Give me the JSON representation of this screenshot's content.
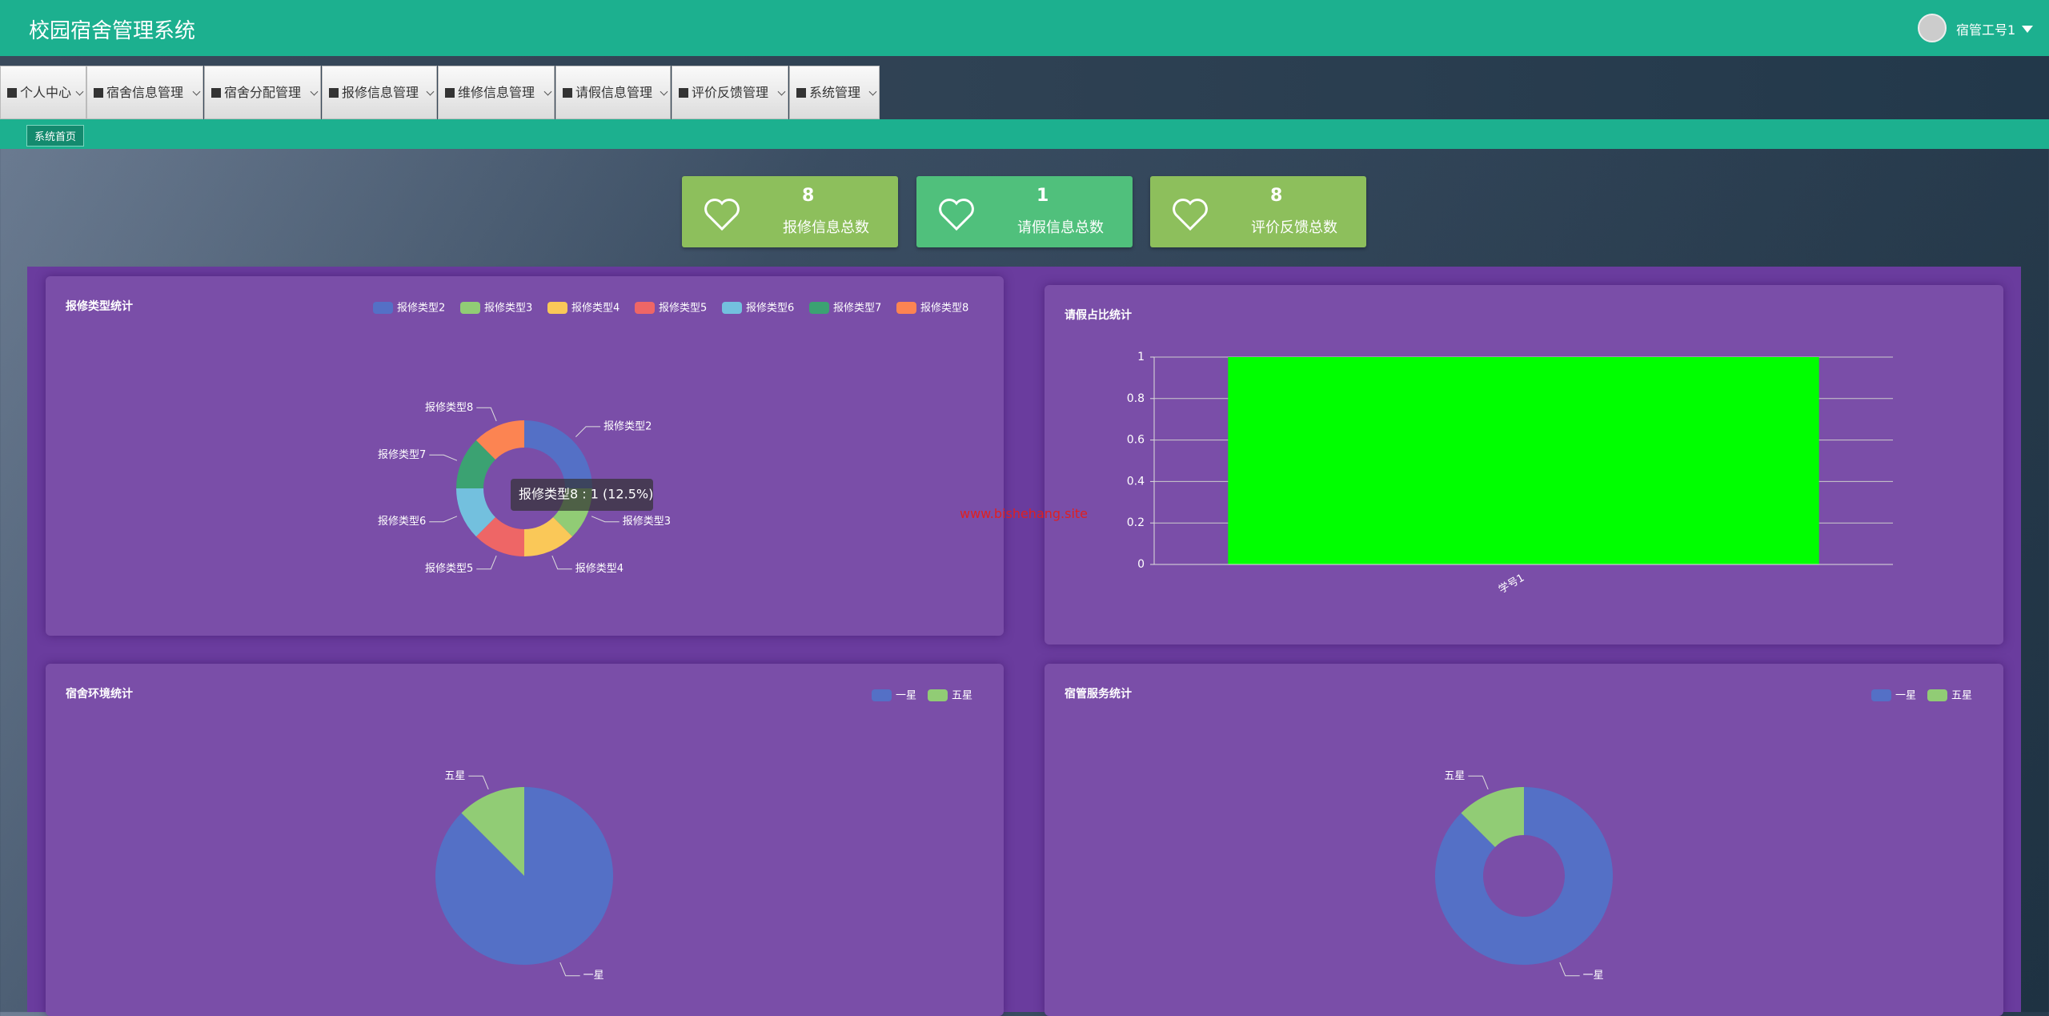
{
  "header": {
    "title": "校园宿舍管理系统",
    "user": "宿管工号1"
  },
  "nav": [
    "个人中心",
    "宿舍信息管理",
    "宿舍分配管理",
    "报修信息管理",
    "维修信息管理",
    "请假信息管理",
    "评价反馈管理",
    "系统管理"
  ],
  "breadcrumb": "系统首页",
  "stats": [
    {
      "value": 8,
      "label": "报修信息总数"
    },
    {
      "value": 1,
      "label": "请假信息总数"
    },
    {
      "value": 8,
      "label": "评价反馈总数"
    }
  ],
  "watermark": "www.bishehang.site",
  "chart_data": [
    {
      "type": "donut",
      "title": "报修类型统计",
      "categories": [
        "报修类型2",
        "报修类型3",
        "报修类型4",
        "报修类型5",
        "报修类型6",
        "报修类型7",
        "报修类型8"
      ],
      "values": [
        2,
        1,
        1,
        1,
        1,
        1,
        1
      ],
      "colors": [
        "#5470c6",
        "#91cc75",
        "#fac858",
        "#ee6666",
        "#73c0de",
        "#3ba272",
        "#fc8452"
      ],
      "tooltip": "报修类型8 : 1 (12.5%)",
      "legend": "top-right"
    },
    {
      "type": "bar",
      "title": "请假占比统计",
      "categories": [
        "学号1"
      ],
      "values": [
        1
      ],
      "color": "#00ff00",
      "ylim": [
        0,
        1
      ],
      "yticks": [
        0,
        0.2,
        0.4,
        0.6,
        0.8,
        1
      ],
      "grid": true
    },
    {
      "type": "pie",
      "title": "宿舍环境统计",
      "categories": [
        "一星",
        "五星"
      ],
      "values": [
        7,
        1
      ],
      "colors": [
        "#5470c6",
        "#91cc75"
      ],
      "legend": "top-right"
    },
    {
      "type": "donut",
      "title": "宿管服务统计",
      "categories": [
        "一星",
        "五星"
      ],
      "values": [
        7,
        1
      ],
      "colors": [
        "#5470c6",
        "#91cc75"
      ],
      "legend": "top-right"
    }
  ]
}
